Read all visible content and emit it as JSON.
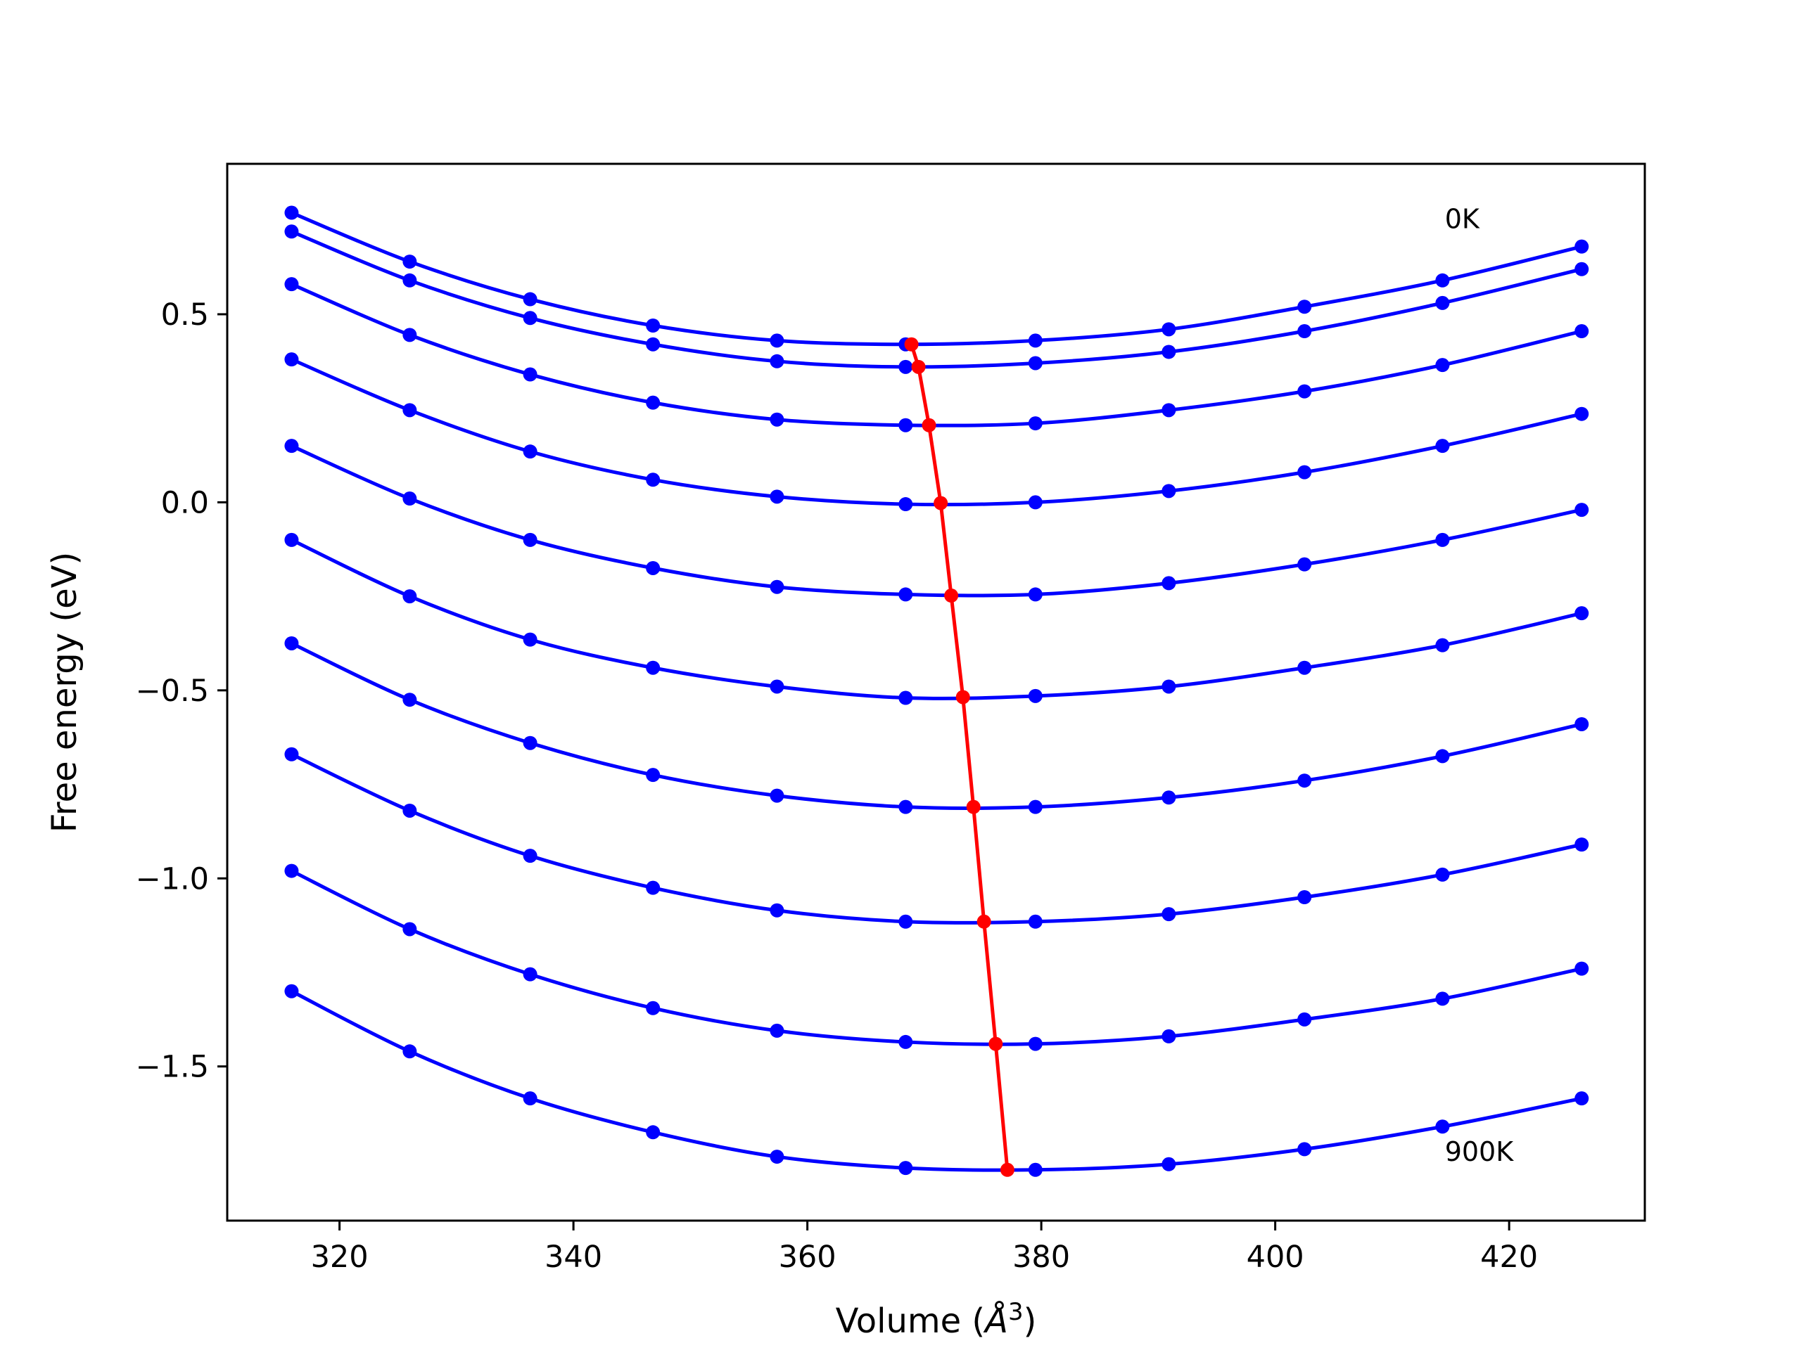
{
  "chart_data": {
    "type": "line",
    "title": "",
    "xlabel": "Volume (",
    "xlabel_unit": "Å",
    "xlabel_exp": "3",
    "xlabel_close": ")",
    "ylabel": "Free energy (eV)",
    "xlim": [
      310.4,
      431.6
    ],
    "ylim": [
      -1.91,
      0.9
    ],
    "xticks": [
      320,
      340,
      360,
      380,
      400,
      420
    ],
    "xtick_labels": [
      "320",
      "340",
      "360",
      "380",
      "400",
      "420"
    ],
    "yticks": [
      0.5,
      0.0,
      -0.5,
      -1.0,
      -1.5
    ],
    "ytick_labels": [
      "0.5",
      "0.0",
      "−0.5",
      "−1.0",
      "−1.5"
    ],
    "grid": false,
    "colors": {
      "isotherms": "#0000ff",
      "minimum": "#ff0000",
      "axes": "#000000"
    },
    "x": [
      315.9,
      326.0,
      336.3,
      346.8,
      357.4,
      368.4,
      379.5,
      390.9,
      402.5,
      414.3,
      426.2
    ],
    "series": [
      {
        "values": [
          0.77,
          0.64,
          0.54,
          0.47,
          0.43,
          0.42,
          0.43,
          0.46,
          0.52,
          0.59,
          0.68
        ]
      },
      {
        "values": [
          0.72,
          0.59,
          0.49,
          0.42,
          0.375,
          0.36,
          0.37,
          0.4,
          0.455,
          0.53,
          0.62
        ]
      },
      {
        "values": [
          0.58,
          0.445,
          0.34,
          0.265,
          0.22,
          0.205,
          0.21,
          0.245,
          0.295,
          0.365,
          0.455
        ]
      },
      {
        "values": [
          0.38,
          0.245,
          0.135,
          0.06,
          0.015,
          -0.005,
          0.0,
          0.03,
          0.08,
          0.15,
          0.235
        ]
      },
      {
        "values": [
          0.15,
          0.01,
          -0.1,
          -0.175,
          -0.225,
          -0.245,
          -0.245,
          -0.215,
          -0.165,
          -0.1,
          -0.02
        ]
      },
      {
        "values": [
          -0.1,
          -0.25,
          -0.365,
          -0.44,
          -0.49,
          -0.52,
          -0.515,
          -0.49,
          -0.44,
          -0.38,
          -0.295
        ]
      },
      {
        "values": [
          -0.375,
          -0.525,
          -0.64,
          -0.725,
          -0.78,
          -0.81,
          -0.81,
          -0.785,
          -0.74,
          -0.675,
          -0.59
        ]
      },
      {
        "values": [
          -0.67,
          -0.82,
          -0.94,
          -1.025,
          -1.085,
          -1.115,
          -1.115,
          -1.095,
          -1.05,
          -0.99,
          -0.91
        ]
      },
      {
        "values": [
          -0.98,
          -1.135,
          -1.255,
          -1.345,
          -1.405,
          -1.435,
          -1.44,
          -1.42,
          -1.375,
          -1.32,
          -1.24
        ]
      },
      {
        "values": [
          -1.3,
          -1.46,
          -1.585,
          -1.675,
          -1.74,
          -1.77,
          -1.775,
          -1.76,
          -1.72,
          -1.66,
          -1.585
        ]
      }
    ],
    "minimum_line": {
      "x": [
        368.9,
        369.5,
        370.4,
        371.4,
        372.3,
        373.3,
        374.2,
        375.1,
        376.1,
        377.1
      ],
      "y": [
        0.42,
        0.36,
        0.205,
        -0.002,
        -0.248,
        -0.518,
        -0.81,
        -1.115,
        -1.44,
        -1.775
      ]
    },
    "annotations": [
      {
        "text": "0K",
        "x": 414.5,
        "y": 0.755
      },
      {
        "text": "900K",
        "x": 414.5,
        "y": -1.725
      }
    ]
  }
}
